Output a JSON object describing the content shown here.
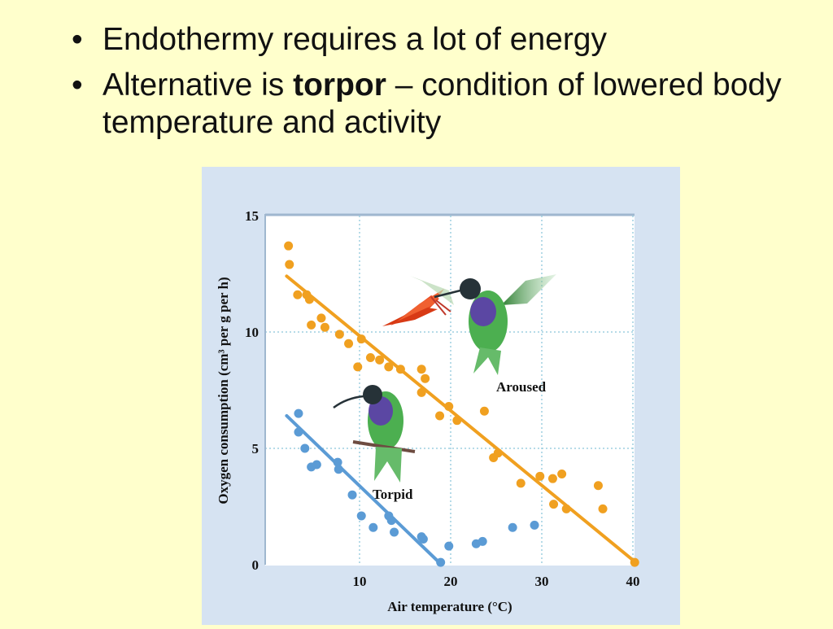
{
  "slide": {
    "bullets": [
      {
        "text": "Endothermy requires a lot of energy"
      },
      {
        "pre": "Alternative is ",
        "bold": "torpor",
        "post": " – condition of lowered body temperature and activity"
      }
    ],
    "bullet_symbol": "•"
  },
  "chart_data": {
    "type": "scatter",
    "xlabel": "Air temperature (°C)",
    "ylabel": "Oxygen consumption (cm³ per g per h)",
    "xlim": [
      0,
      40
    ],
    "ylim": [
      0,
      15
    ],
    "x_ticks": [
      10,
      20,
      30,
      40
    ],
    "y_ticks": [
      0,
      5,
      10,
      15
    ],
    "grid": true,
    "annotations": [
      "Aroused",
      "Torpid"
    ],
    "series": [
      {
        "name": "Aroused",
        "color": "#f0a020",
        "points": [
          [
            2.2,
            13.7
          ],
          [
            2.3,
            12.9
          ],
          [
            3.2,
            11.6
          ],
          [
            4.2,
            11.6
          ],
          [
            4.5,
            11.4
          ],
          [
            4.7,
            10.3
          ],
          [
            5.8,
            10.6
          ],
          [
            6.2,
            10.2
          ],
          [
            7.8,
            9.9
          ],
          [
            8.8,
            9.5
          ],
          [
            9.8,
            8.5
          ],
          [
            10.2,
            9.7
          ],
          [
            11.2,
            8.9
          ],
          [
            12.2,
            8.8
          ],
          [
            13.2,
            8.5
          ],
          [
            14.5,
            8.4
          ],
          [
            16.8,
            8.4
          ],
          [
            17.2,
            8.0
          ],
          [
            16.8,
            7.4
          ],
          [
            18.8,
            6.4
          ],
          [
            19.8,
            6.8
          ],
          [
            20.7,
            6.2
          ],
          [
            23.7,
            6.6
          ],
          [
            24.7,
            4.6
          ],
          [
            25.2,
            4.8
          ],
          [
            27.7,
            3.5
          ],
          [
            29.8,
            3.8
          ],
          [
            31.2,
            3.7
          ],
          [
            32.2,
            3.9
          ],
          [
            31.3,
            2.6
          ],
          [
            32.7,
            2.4
          ],
          [
            36.2,
            3.4
          ],
          [
            36.7,
            2.4
          ],
          [
            40.2,
            0.1
          ]
        ],
        "fit_line": [
          [
            2.0,
            12.4
          ],
          [
            40.0,
            0.2
          ]
        ]
      },
      {
        "name": "Torpid",
        "color": "#5b9bd5",
        "points": [
          [
            3.3,
            6.5
          ],
          [
            3.3,
            5.7
          ],
          [
            4.0,
            5.0
          ],
          [
            4.7,
            4.2
          ],
          [
            5.3,
            4.3
          ],
          [
            7.6,
            4.4
          ],
          [
            7.7,
            4.1
          ],
          [
            9.2,
            3.0
          ],
          [
            10.2,
            2.1
          ],
          [
            11.5,
            1.6
          ],
          [
            13.2,
            2.1
          ],
          [
            13.5,
            1.9
          ],
          [
            13.8,
            1.4
          ],
          [
            16.8,
            1.2
          ],
          [
            17.0,
            1.1
          ],
          [
            18.9,
            0.1
          ],
          [
            19.8,
            0.8
          ],
          [
            22.8,
            0.9
          ],
          [
            23.5,
            1.0
          ],
          [
            26.8,
            1.6
          ],
          [
            29.2,
            1.7
          ]
        ],
        "fit_line": [
          [
            2.0,
            6.4
          ],
          [
            19.0,
            0.0
          ]
        ]
      }
    ]
  }
}
